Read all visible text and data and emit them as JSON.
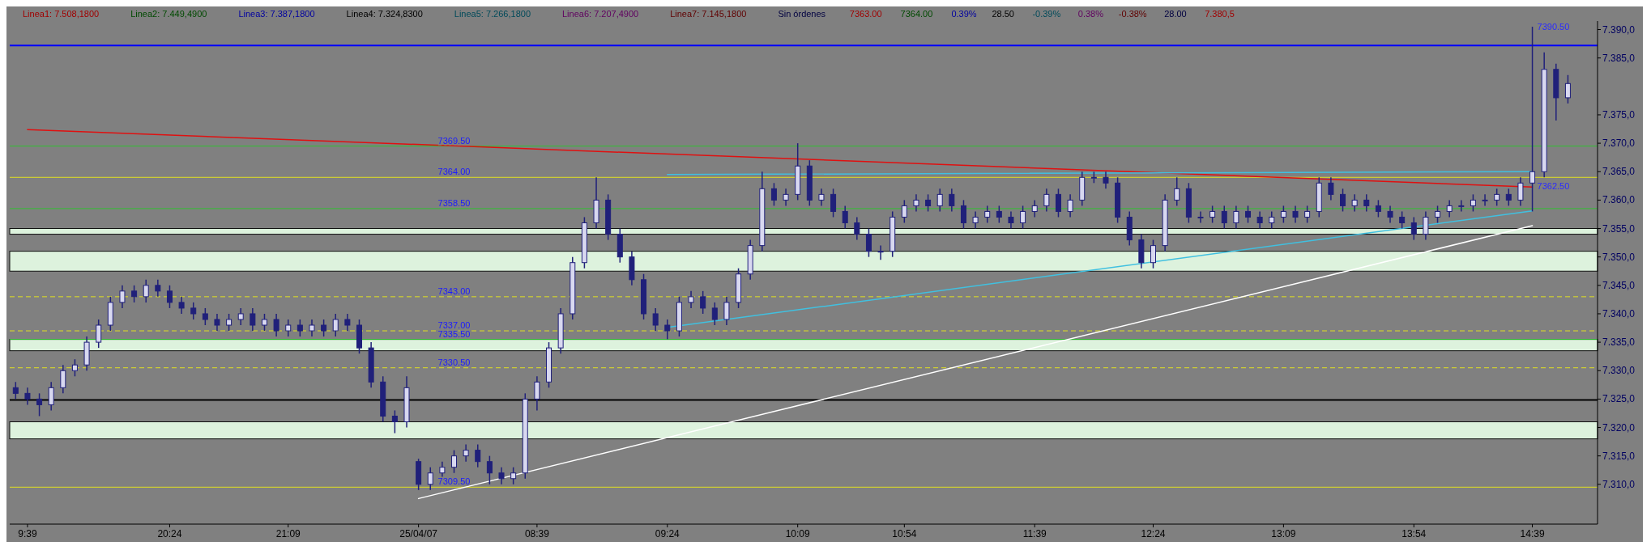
{
  "chart_data": {
    "type": "candlestick",
    "color": "#20207a",
    "categories": [
      null,
      "9:39",
      null,
      null,
      null,
      null,
      null,
      null,
      null,
      null,
      null,
      null,
      null,
      "20:24",
      null,
      null,
      null,
      null,
      null,
      null,
      null,
      null,
      null,
      "21:09",
      null,
      null,
      null,
      null,
      null,
      null,
      null,
      null,
      null,
      null,
      "25/04/07",
      null,
      null,
      null,
      null,
      null,
      null,
      null,
      null,
      null,
      "08:39",
      null,
      null,
      null,
      null,
      null,
      null,
      null,
      null,
      null,
      null,
      "09:24",
      null,
      null,
      null,
      null,
      null,
      null,
      null,
      null,
      null,
      null,
      "10:09",
      null,
      null,
      null,
      null,
      null,
      null,
      null,
      null,
      "10:54",
      null,
      null,
      null,
      null,
      null,
      null,
      null,
      null,
      null,
      null,
      "11:39",
      null,
      null,
      null,
      null,
      null,
      null,
      null,
      null,
      null,
      "12:24",
      null,
      null,
      null,
      null,
      null,
      null,
      null,
      null,
      null,
      null,
      "13:09",
      null,
      null,
      null,
      null,
      null,
      null,
      null,
      null,
      null,
      null,
      "13:54",
      null,
      null,
      null,
      null,
      null,
      null,
      null,
      null,
      null,
      "14:39",
      null,
      null,
      null
    ],
    "ohlc": [
      [
        7327,
        7328,
        7325,
        7326
      ],
      [
        7326,
        7327,
        7324,
        7325
      ],
      [
        7325,
        7326,
        7322,
        7324
      ],
      [
        7324,
        7328,
        7323,
        7327
      ],
      [
        7327,
        7331,
        7326,
        7330
      ],
      [
        7330,
        7332,
        7329,
        7331
      ],
      [
        7331,
        7336,
        7330,
        7335
      ],
      [
        7335,
        7339,
        7334,
        7338
      ],
      [
        7338,
        7343,
        7337,
        7342
      ],
      [
        7342,
        7345,
        7341,
        7344
      ],
      [
        7344,
        7345,
        7342,
        7343
      ],
      [
        7343,
        7346,
        7342,
        7345
      ],
      [
        7345,
        7346,
        7343,
        7344
      ],
      [
        7344,
        7345,
        7341,
        7342
      ],
      [
        7342,
        7343,
        7340,
        7341
      ],
      [
        7341,
        7342,
        7339,
        7340
      ],
      [
        7340,
        7341,
        7338,
        7339
      ],
      [
        7339,
        7340,
        7337,
        7338
      ],
      [
        7338,
        7340,
        7337,
        7339
      ],
      [
        7339,
        7341,
        7338,
        7340
      ],
      [
        7340,
        7341,
        7337,
        7338
      ],
      [
        7338,
        7340,
        7337,
        7339
      ],
      [
        7339,
        7340,
        7336,
        7337
      ],
      [
        7337,
        7339,
        7336,
        7338
      ],
      [
        7338,
        7339,
        7336,
        7337
      ],
      [
        7337,
        7339,
        7336,
        7338
      ],
      [
        7338,
        7339,
        7336,
        7337
      ],
      [
        7337,
        7340,
        7336,
        7339
      ],
      [
        7339,
        7340,
        7337,
        7338
      ],
      [
        7338,
        7339,
        7333,
        7334
      ],
      [
        7334,
        7335,
        7327,
        7328
      ],
      [
        7328,
        7329,
        7321,
        7322
      ],
      [
        7322,
        7323,
        7319,
        7321
      ],
      [
        7321,
        7329,
        7320,
        7327
      ],
      [
        7314,
        7314.5,
        7309,
        7310
      ],
      [
        7310,
        7313,
        7309,
        7312
      ],
      [
        7312,
        7314,
        7311,
        7313
      ],
      [
        7313,
        7316,
        7312,
        7315
      ],
      [
        7315,
        7317,
        7314,
        7316
      ],
      [
        7316,
        7317,
        7313,
        7314
      ],
      [
        7314,
        7315,
        7310,
        7312
      ],
      [
        7312,
        7313,
        7310,
        7311
      ],
      [
        7311,
        7313,
        7310,
        7312
      ],
      [
        7312,
        7326,
        7311,
        7325
      ],
      [
        7325,
        7329,
        7323,
        7328
      ],
      [
        7328,
        7335,
        7327,
        7334
      ],
      [
        7334,
        7341,
        7333,
        7340
      ],
      [
        7340,
        7350,
        7339,
        7349
      ],
      [
        7349,
        7357,
        7348,
        7356
      ],
      [
        7356,
        7364,
        7355,
        7360
      ],
      [
        7360,
        7361,
        7353,
        7354
      ],
      [
        7354,
        7355,
        7349,
        7350
      ],
      [
        7350,
        7351,
        7345,
        7346
      ],
      [
        7346,
        7347,
        7339,
        7340
      ],
      [
        7340,
        7341,
        7337,
        7338
      ],
      [
        7338,
        7339,
        7335.5,
        7337
      ],
      [
        7337,
        7343,
        7336,
        7342
      ],
      [
        7342,
        7344,
        7341,
        7343
      ],
      [
        7343,
        7344,
        7340,
        7341
      ],
      [
        7341,
        7342,
        7338,
        7339
      ],
      [
        7339,
        7343,
        7338,
        7342
      ],
      [
        7342,
        7348,
        7341,
        7347
      ],
      [
        7347,
        7353,
        7346,
        7352
      ],
      [
        7352,
        7365,
        7351,
        7362
      ],
      [
        7362,
        7363,
        7359,
        7360
      ],
      [
        7360,
        7362,
        7359,
        7361
      ],
      [
        7361,
        7370,
        7360,
        7366
      ],
      [
        7366,
        7367,
        7359,
        7360
      ],
      [
        7360,
        7362,
        7359,
        7361
      ],
      [
        7361,
        7362,
        7357,
        7358
      ],
      [
        7358,
        7359,
        7355,
        7356
      ],
      [
        7356,
        7357,
        7353,
        7354
      ],
      [
        7354,
        7355,
        7350,
        7351
      ],
      [
        7351,
        7352,
        7349.5,
        7351
      ],
      [
        7351,
        7358,
        7350,
        7357
      ],
      [
        7357,
        7360,
        7356,
        7359
      ],
      [
        7359,
        7361,
        7358,
        7360
      ],
      [
        7360,
        7361,
        7358,
        7359
      ],
      [
        7359,
        7362,
        7358,
        7361
      ],
      [
        7361,
        7362,
        7358,
        7359
      ],
      [
        7359,
        7360,
        7355,
        7356
      ],
      [
        7356,
        7358,
        7355,
        7357
      ],
      [
        7357,
        7359,
        7356,
        7358
      ],
      [
        7358,
        7359,
        7356,
        7357
      ],
      [
        7357,
        7358,
        7355,
        7356
      ],
      [
        7356,
        7359,
        7355,
        7358
      ],
      [
        7358,
        7360,
        7357,
        7359
      ],
      [
        7359,
        7362,
        7358,
        7361
      ],
      [
        7361,
        7362,
        7357,
        7358
      ],
      [
        7358,
        7361,
        7357,
        7360
      ],
      [
        7360,
        7365,
        7359,
        7364
      ],
      [
        7364,
        7365,
        7363,
        7364
      ],
      [
        7364,
        7365,
        7362,
        7363
      ],
      [
        7363,
        7364,
        7356,
        7357
      ],
      [
        7357,
        7358,
        7352,
        7353
      ],
      [
        7353,
        7354,
        7348,
        7349
      ],
      [
        7349,
        7353,
        7348,
        7352
      ],
      [
        7352,
        7361,
        7351,
        7360
      ],
      [
        7360,
        7364,
        7359,
        7362
      ],
      [
        7362,
        7363,
        7356,
        7357
      ],
      [
        7357,
        7358,
        7356,
        7357
      ],
      [
        7357,
        7359,
        7356,
        7358
      ],
      [
        7358,
        7359,
        7355,
        7356
      ],
      [
        7356,
        7359,
        7355,
        7358
      ],
      [
        7358,
        7359,
        7356,
        7357
      ],
      [
        7357,
        7358,
        7355,
        7356
      ],
      [
        7356,
        7358,
        7355,
        7357
      ],
      [
        7357,
        7359,
        7356,
        7358
      ],
      [
        7358,
        7359,
        7356,
        7357
      ],
      [
        7357,
        7359,
        7356,
        7358
      ],
      [
        7358,
        7364,
        7357,
        7363
      ],
      [
        7363,
        7364,
        7360,
        7361
      ],
      [
        7361,
        7362,
        7358,
        7359
      ],
      [
        7359,
        7361,
        7358,
        7360
      ],
      [
        7360,
        7361,
        7358,
        7359
      ],
      [
        7359,
        7360,
        7357,
        7358
      ],
      [
        7358,
        7359,
        7356,
        7357
      ],
      [
        7357,
        7358,
        7355,
        7356
      ],
      [
        7356,
        7357,
        7353,
        7354
      ],
      [
        7354,
        7358,
        7353,
        7357
      ],
      [
        7357,
        7359,
        7356,
        7358
      ],
      [
        7358,
        7360,
        7357,
        7359
      ],
      [
        7359,
        7360,
        7358,
        7359
      ],
      [
        7359,
        7361,
        7358,
        7360
      ],
      [
        7360,
        7361,
        7359,
        7360
      ],
      [
        7360,
        7362,
        7359,
        7361
      ],
      [
        7361,
        7362,
        7359,
        7360
      ],
      [
        7360,
        7364,
        7359,
        7363
      ],
      [
        7363,
        7390.5,
        7358,
        7365
      ],
      [
        7365,
        7386,
        7364,
        7383
      ],
      [
        7383,
        7384,
        7374,
        7378
      ],
      [
        7378,
        7382,
        7377,
        7380.5
      ]
    ],
    "series": [
      {
        "type": "line",
        "color": "#e01010",
        "x": [
          "9:39",
          "14:39"
        ],
        "values": [
          7372.4,
          7362.3
        ]
      },
      {
        "type": "line",
        "color": "#ffffff",
        "x": [
          "25/04/07",
          "14:39"
        ],
        "values": [
          7307.5,
          7355.5
        ]
      },
      {
        "type": "line",
        "color": "#40c0e0",
        "x": [
          "09:24",
          "14:39"
        ],
        "values": [
          7337.6,
          7358.1
        ]
      },
      {
        "type": "line",
        "color": "#40c0e0",
        "x": [
          "09:24",
          "14:39"
        ],
        "values": [
          7364.5,
          7365
        ]
      }
    ],
    "ylim": [
      7303,
      7391.5
    ],
    "yticks": [
      {
        "value": 7310,
        "label": "7.310,0"
      },
      {
        "value": 7315,
        "label": "7.315,0"
      },
      {
        "value": 7320,
        "label": "7.320,0"
      },
      {
        "value": 7325,
        "label": "7.325,0"
      },
      {
        "value": 7330,
        "label": "7.330,0"
      },
      {
        "value": 7335,
        "label": "7.335,0"
      },
      {
        "value": 7340,
        "label": "7.340,0"
      },
      {
        "value": 7345,
        "label": "7.345,0"
      },
      {
        "value": 7350,
        "label": "7.350,0"
      },
      {
        "value": 7355,
        "label": "7.355,0"
      },
      {
        "value": 7360,
        "label": "7.360,0"
      },
      {
        "value": 7365,
        "label": "7.365,0"
      },
      {
        "value": 7370,
        "label": "7.370,0"
      },
      {
        "value": 7375,
        "label": "7.375,0"
      },
      {
        "value": 7385,
        "label": "7.385,0"
      },
      {
        "value": 7390,
        "label": "7.390,0"
      }
    ],
    "ref_lines": [
      {
        "axis": "y",
        "value": 7387.18,
        "color": "#0000ff"
      },
      {
        "axis": "y",
        "value": 7324.83,
        "color": "#000000"
      },
      {
        "axis": "y",
        "value": 7369.5,
        "label": "7369.50",
        "color": "#30c030",
        "line_style": "solid"
      },
      {
        "axis": "y",
        "value": 7364,
        "label": "7364.00",
        "color": "#e0e020",
        "line_style": "solid"
      },
      {
        "axis": "y",
        "value": 7358.5,
        "label": "7358.50",
        "color": "#30c030",
        "line_style": "solid"
      },
      {
        "axis": "y",
        "value": 7343,
        "label": "7343.00",
        "color": "#e0e020",
        "line_style": "dashed"
      },
      {
        "axis": "y",
        "value": 7337,
        "label": "7337.00",
        "color": "#e0e020",
        "line_style": "dashed"
      },
      {
        "axis": "y",
        "value": 7335.5,
        "label": "7335.50",
        "color": "#30c030",
        "line_style": "solid"
      },
      {
        "axis": "y",
        "value": 7330.5,
        "label": "7330.50",
        "color": "#e0e020",
        "line_style": "dashed"
      },
      {
        "axis": "y",
        "value": 7309.5,
        "label": "7309.50",
        "color": "#e0e020",
        "line_style": "solid"
      }
    ],
    "bands": [
      {
        "axis": "y",
        "from": 7347.5,
        "to": 7351,
        "color": "#e8ffe8"
      },
      {
        "axis": "y",
        "from": 7333.5,
        "to": 7335.5,
        "color": "#e8ffe8"
      },
      {
        "axis": "y",
        "from": 7318,
        "to": 7321,
        "color": "#e8ffe8"
      },
      {
        "axis": "y",
        "from": 7354,
        "to": 7355,
        "color": "#e8ffe8"
      }
    ],
    "annotations": [
      "Linea1: 7.508,1800",
      "Linea2: 7.449,4900",
      "Linea3: 7.387,1800",
      "Linea4: 7.324,8300",
      "Linea5: 7.266,1800",
      "Linea6: 7.207,4900",
      "Linea7: 7.145,1800",
      "Sin órdenes",
      "7363.00",
      "7364.00",
      "0.39%",
      "28.50",
      "-0.39%",
      "0.38%",
      "-0.38%",
      "28.00",
      "7.380,5",
      {
        "text": "7390.50",
        "x": "14:39",
        "y": 7390.5
      },
      {
        "text": "7362.50",
        "x": "14:39",
        "y": 7362.5
      }
    ]
  }
}
